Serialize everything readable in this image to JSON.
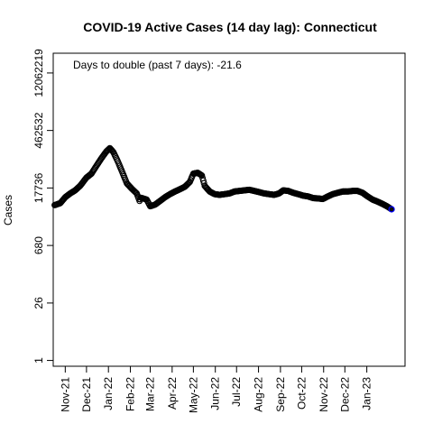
{
  "chart_data": {
    "type": "scatter",
    "title": "COVID-19 Active Cases (14 day lag): Connecticut",
    "annotation": "Days to double (past 7 days): -21.6",
    "ylabel": "Cases",
    "xlabel": "",
    "y_scale": "log",
    "y_ticks": [
      "1",
      "26",
      "680",
      "17736",
      "462532",
      "12062219"
    ],
    "x_ticks": [
      "Nov-21",
      "Dec-21",
      "Jan-22",
      "Feb-22",
      "Mar-22",
      "Apr-22",
      "May-22",
      "Jun-22",
      "Jul-22",
      "Aug-22",
      "Sep-22",
      "Oct-22",
      "Nov-22",
      "Dec-22",
      "Jan-23"
    ],
    "x_tick_dates": [
      "2021-11-01",
      "2021-12-01",
      "2022-01-01",
      "2022-02-01",
      "2022-03-01",
      "2022-04-01",
      "2022-05-01",
      "2022-06-01",
      "2022-07-01",
      "2022-08-01",
      "2022-09-01",
      "2022-10-01",
      "2022-11-01",
      "2022-12-01",
      "2023-01-01"
    ],
    "x_range": [
      "2021-10-15",
      "2023-02-24"
    ],
    "ylim": [
      0.72,
      37000000
    ],
    "grid": false,
    "legend": "none",
    "marker_color": "#000000",
    "last_marker_color": "#0000ff",
    "series": [
      {
        "points": [
          [
            "2021-10-17",
            6700
          ],
          [
            "2021-10-25",
            7500
          ],
          [
            "2021-11-01",
            10500
          ],
          [
            "2021-11-08",
            13000
          ],
          [
            "2021-11-15",
            15500
          ],
          [
            "2021-11-22",
            20000
          ],
          [
            "2021-12-01",
            32000
          ],
          [
            "2021-12-08",
            40000
          ],
          [
            "2021-12-15",
            62000
          ],
          [
            "2021-12-22",
            95000
          ],
          [
            "2021-12-29",
            140000
          ],
          [
            "2022-01-03",
            170000
          ],
          [
            "2022-01-08",
            135000
          ],
          [
            "2022-01-14",
            82000
          ],
          [
            "2022-01-20",
            46000
          ],
          [
            "2022-01-27",
            23000
          ],
          [
            "2022-02-03",
            17000
          ],
          [
            "2022-02-10",
            13000
          ],
          [
            "2022-02-14",
            8500
          ],
          [
            "2022-02-16",
            10200
          ],
          [
            "2022-02-24",
            9200
          ],
          [
            "2022-03-01",
            6300
          ],
          [
            "2022-03-08",
            6900
          ],
          [
            "2022-03-15",
            8500
          ],
          [
            "2022-03-22",
            10500
          ],
          [
            "2022-03-29",
            12500
          ],
          [
            "2022-04-05",
            14500
          ],
          [
            "2022-04-12",
            16500
          ],
          [
            "2022-04-19",
            19000
          ],
          [
            "2022-04-26",
            25000
          ],
          [
            "2022-05-01",
            40000
          ],
          [
            "2022-05-07",
            42000
          ],
          [
            "2022-05-13",
            36000
          ],
          [
            "2022-05-17",
            20000
          ],
          [
            "2022-05-24",
            14500
          ],
          [
            "2022-05-31",
            12500
          ],
          [
            "2022-06-07",
            12000
          ],
          [
            "2022-06-14",
            12500
          ],
          [
            "2022-06-21",
            13000
          ],
          [
            "2022-06-28",
            14500
          ],
          [
            "2022-07-05",
            15000
          ],
          [
            "2022-07-12",
            15500
          ],
          [
            "2022-07-19",
            16000
          ],
          [
            "2022-07-26",
            15000
          ],
          [
            "2022-08-02",
            14000
          ],
          [
            "2022-08-09",
            13000
          ],
          [
            "2022-08-16",
            12500
          ],
          [
            "2022-08-23",
            12000
          ],
          [
            "2022-08-30",
            13000
          ],
          [
            "2022-09-05",
            15500
          ],
          [
            "2022-09-12",
            15000
          ],
          [
            "2022-09-19",
            13500
          ],
          [
            "2022-09-26",
            12500
          ],
          [
            "2022-10-03",
            11500
          ],
          [
            "2022-10-10",
            11000
          ],
          [
            "2022-10-17",
            10000
          ],
          [
            "2022-10-24",
            9800
          ],
          [
            "2022-10-31",
            9500
          ],
          [
            "2022-11-07",
            11000
          ],
          [
            "2022-11-14",
            12500
          ],
          [
            "2022-11-21",
            13500
          ],
          [
            "2022-11-28",
            14500
          ],
          [
            "2022-12-05",
            14500
          ],
          [
            "2022-12-12",
            15000
          ],
          [
            "2022-12-19",
            15000
          ],
          [
            "2022-12-26",
            13500
          ],
          [
            "2023-01-02",
            11000
          ],
          [
            "2023-01-09",
            9200
          ],
          [
            "2023-01-16",
            8200
          ],
          [
            "2023-01-23",
            7200
          ],
          [
            "2023-01-30",
            6200
          ],
          [
            "2023-02-05",
            5300
          ]
        ]
      }
    ]
  }
}
